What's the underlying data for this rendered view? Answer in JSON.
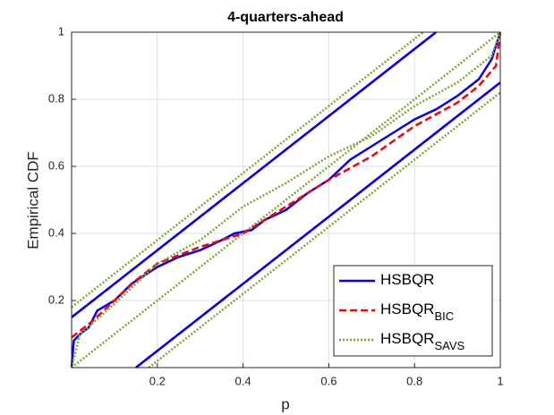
{
  "chart_data": {
    "type": "line",
    "title": "4-quarters-ahead",
    "x_label": "p",
    "y_label": "Empirical CDF",
    "xlim": [
      0,
      1
    ],
    "ylim": [
      0,
      1
    ],
    "xticks": [
      0.2,
      0.4,
      0.6,
      0.8,
      1
    ],
    "yticks": [
      0.2,
      0.4,
      0.6,
      0.8,
      1
    ],
    "grid": true,
    "legend_position": "lower right",
    "series": [
      {
        "name": "HSBQR",
        "color": "#0000ff",
        "style": "solid",
        "x": [
          0,
          0.005,
          0.02,
          0.04,
          0.06,
          0.1,
          0.14,
          0.2,
          0.25,
          0.3,
          0.35,
          0.38,
          0.42,
          0.45,
          0.5,
          0.55,
          0.6,
          0.65,
          0.7,
          0.75,
          0.8,
          0.85,
          0.9,
          0.95,
          0.98,
          1
        ],
        "values": [
          0,
          0.08,
          0.1,
          0.12,
          0.17,
          0.2,
          0.25,
          0.3,
          0.33,
          0.35,
          0.38,
          0.4,
          0.41,
          0.44,
          0.47,
          0.52,
          0.56,
          0.62,
          0.66,
          0.7,
          0.74,
          0.77,
          0.81,
          0.86,
          0.92,
          1
        ]
      },
      {
        "name": "HSBQR",
        "subscript": "BIC",
        "color": "#ff0000",
        "style": "dashed",
        "x": [
          0,
          0.05,
          0.1,
          0.15,
          0.2,
          0.3,
          0.4,
          0.45,
          0.5,
          0.6,
          0.7,
          0.8,
          0.9,
          0.95,
          0.99,
          1
        ],
        "values": [
          0.09,
          0.14,
          0.2,
          0.26,
          0.31,
          0.36,
          0.4,
          0.44,
          0.48,
          0.56,
          0.63,
          0.72,
          0.79,
          0.84,
          0.9,
          1
        ]
      },
      {
        "name": "HSBQR",
        "subscript": "SAVS",
        "color": "#77ac30",
        "style": "dotted",
        "x": [
          0,
          0.02,
          0.1,
          0.2,
          0.3,
          0.4,
          0.5,
          0.6,
          0.7,
          0.8,
          0.9,
          0.98,
          1
        ],
        "values": [
          0,
          0.1,
          0.19,
          0.31,
          0.38,
          0.48,
          0.55,
          0.63,
          0.69,
          0.78,
          0.85,
          0.93,
          1
        ]
      }
    ],
    "bands": [
      {
        "color": "#ff0000",
        "style": "dashed",
        "x": [
          0,
          0.85
        ],
        "values": [
          0.15,
          1
        ]
      },
      {
        "color": "#0000ff",
        "style": "solid",
        "x": [
          0,
          0.85
        ],
        "values": [
          0.15,
          1
        ]
      },
      {
        "color": "#ff0000",
        "style": "dashed",
        "x": [
          0.15,
          1
        ],
        "values": [
          0,
          0.85
        ]
      },
      {
        "color": "#0000ff",
        "style": "solid",
        "x": [
          0.15,
          1
        ],
        "values": [
          0,
          0.85
        ]
      },
      {
        "color": "#77ac30",
        "style": "dotted",
        "x": [
          0,
          0.82
        ],
        "values": [
          0.18,
          1
        ]
      },
      {
        "color": "#77ac30",
        "style": "dotted",
        "x": [
          0.18,
          1
        ],
        "values": [
          0,
          0.82
        ]
      }
    ],
    "reference_line": {
      "color": "#77ac30",
      "style": "dotted",
      "x": [
        0,
        1
      ],
      "values": [
        0,
        1
      ]
    }
  }
}
